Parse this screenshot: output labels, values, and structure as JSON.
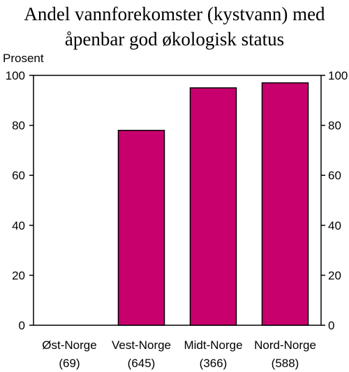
{
  "chart_data": {
    "type": "bar",
    "title_line1": "Andel vannforekomster (kystvann) med",
    "title_line2": "åpenbar god økologisk status",
    "ylabel": "Prosent",
    "categories": [
      "Øst-Norge",
      "Vest-Norge",
      "Midt-Norge",
      "Nord-Norge"
    ],
    "category_counts": [
      "(69)",
      "(645)",
      "(366)",
      "(588)"
    ],
    "values": [
      0,
      78,
      95,
      97
    ],
    "ylim": [
      0,
      100
    ],
    "yticks": [
      0,
      20,
      40,
      60,
      80,
      100
    ],
    "ytick_labels": [
      "0",
      "20",
      "40",
      "60",
      "80",
      "100"
    ],
    "bar_color": "#C8006E",
    "grid": false
  }
}
